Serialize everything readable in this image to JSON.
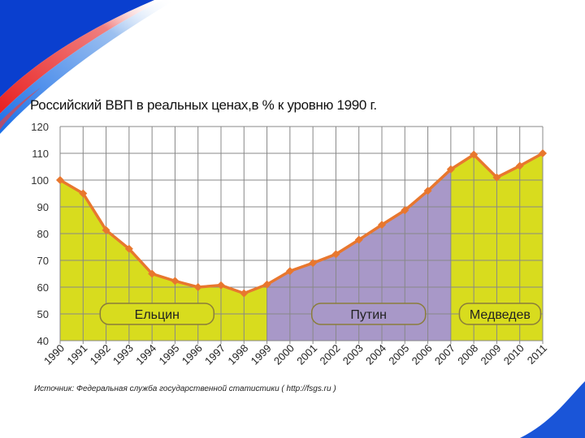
{
  "chart_data": {
    "type": "area",
    "title": "Российский ВВП в реальных ценах,в % к уровню 1990 г.",
    "xlabel": "",
    "ylabel": "",
    "ylim": [
      40,
      120
    ],
    "yticks": [
      40,
      50,
      60,
      70,
      80,
      90,
      100,
      110,
      120
    ],
    "grid": true,
    "x": [
      "1990",
      "1991",
      "1992",
      "1993",
      "1994",
      "1995",
      "1996",
      "1997",
      "1998",
      "1999",
      "2000",
      "2001",
      "2002",
      "2003",
      "2004",
      "2005",
      "2006",
      "2007",
      "2008",
      "2009",
      "2010",
      "2011"
    ],
    "values": [
      100,
      95,
      81.3,
      74.3,
      65,
      62.3,
      60,
      60.7,
      57.7,
      61,
      66,
      69,
      72.3,
      77.7,
      83.3,
      88.7,
      96,
      104,
      109.5,
      101,
      105.3,
      110
    ],
    "line_color": "#e8772e",
    "periods": [
      {
        "label": "Ельцин",
        "from": "1990",
        "to": "1999",
        "color": "#d8dc1e"
      },
      {
        "label": "Путин",
        "from": "1999",
        "to": "2007",
        "color": "#a898c8"
      },
      {
        "label": "Медведев",
        "from": "2007",
        "to": "2011",
        "color": "#d8dc1e"
      }
    ]
  },
  "source": "Источник: Федеральная служба государственной статистики ( http://fsgs.ru )"
}
